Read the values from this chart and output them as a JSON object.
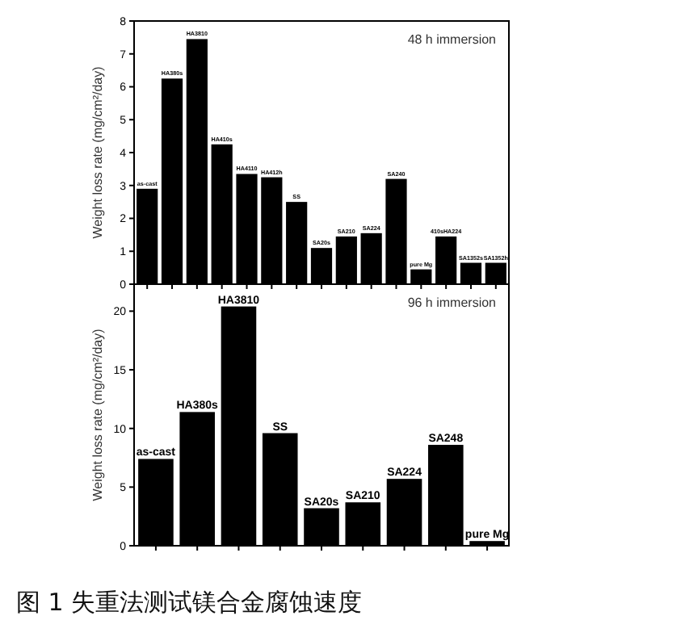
{
  "chart_data": [
    {
      "type": "bar",
      "ylabel": "Weight loss rate (mg/cm²/day)",
      "categories": [
        "as-cast",
        "HA380s",
        "HA3810",
        "HA410s",
        "HA4110",
        "HA412h",
        "SS",
        "SA20s",
        "SA210",
        "SA224",
        "SA240",
        "pure Mg",
        "410sHA224",
        "SA1352s",
        "SA1352h"
      ],
      "values": [
        2.9,
        6.25,
        7.45,
        4.25,
        3.35,
        3.25,
        2.5,
        1.1,
        1.45,
        1.55,
        3.2,
        0.45,
        1.45,
        0.65,
        0.65
      ],
      "color": "#000000",
      "ylim": [
        0,
        8
      ],
      "yticks": [
        0,
        1,
        2,
        3,
        4,
        5,
        6,
        7,
        8
      ],
      "annotations": [
        "48 h immersion"
      ]
    },
    {
      "type": "bar",
      "ylabel": "Weight loss rate (mg/cm²/day)",
      "categories": [
        "as-cast",
        "HA380s",
        "HA3810",
        "SS",
        "SA20s",
        "SA210",
        "SA224",
        "SA248",
        "pure Mg"
      ],
      "values": [
        7.4,
        11.4,
        20.4,
        9.6,
        3.2,
        3.7,
        5.7,
        8.6,
        0.4
      ],
      "color": "#000000",
      "ylim": [
        0,
        22.3
      ],
      "yticks": [
        0,
        5,
        10,
        15,
        20
      ],
      "annotations": [
        "96 h immersion",
        "图 1 失重法测试镁合金腐蚀速度"
      ]
    }
  ]
}
